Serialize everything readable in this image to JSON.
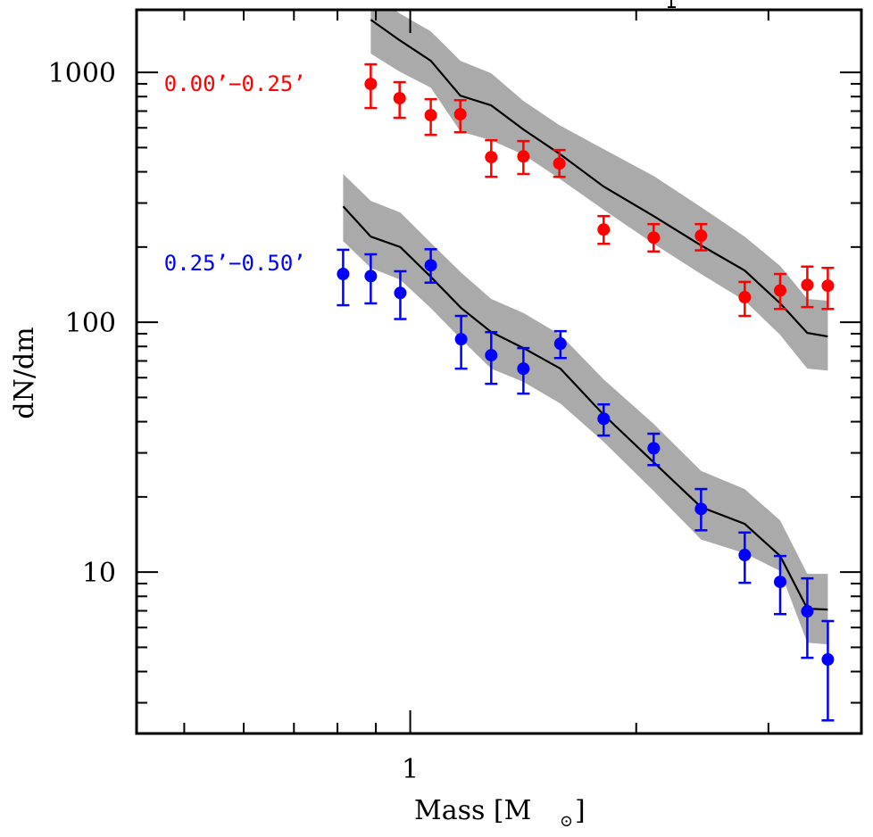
{
  "chart_data": {
    "type": "scatter",
    "title": "",
    "xlabel": "Mass [M⊙]",
    "xlabel_main": "Mass [M",
    "xlabel_sub": "⊙",
    "xlabel_close": "]",
    "ylabel": "dN/dm",
    "xscale": "log",
    "yscale": "log",
    "xlim": [
      0.432,
      3.99
    ],
    "ylim": [
      2.26,
      1780
    ],
    "grid": false,
    "x_ticks": [
      {
        "value": 0.5,
        "label": "",
        "major": false
      },
      {
        "value": 0.6,
        "label": "",
        "major": false
      },
      {
        "value": 0.7,
        "label": "",
        "major": false
      },
      {
        "value": 0.8,
        "label": "",
        "major": false
      },
      {
        "value": 0.9,
        "label": "",
        "major": false
      },
      {
        "value": 1,
        "label": "1",
        "major": true
      },
      {
        "value": 2,
        "label": "",
        "major": false
      },
      {
        "value": 3,
        "label": "",
        "major": false
      }
    ],
    "y_ticks": [
      {
        "value": 3,
        "label": "",
        "major": false
      },
      {
        "value": 4,
        "label": "",
        "major": false
      },
      {
        "value": 5,
        "label": "",
        "major": false
      },
      {
        "value": 6,
        "label": "",
        "major": false
      },
      {
        "value": 7,
        "label": "",
        "major": false
      },
      {
        "value": 8,
        "label": "",
        "major": false
      },
      {
        "value": 9,
        "label": "",
        "major": false
      },
      {
        "value": 10,
        "label": "10",
        "major": true
      },
      {
        "value": 20,
        "label": "",
        "major": false
      },
      {
        "value": 30,
        "label": "",
        "major": false
      },
      {
        "value": 40,
        "label": "",
        "major": false
      },
      {
        "value": 50,
        "label": "",
        "major": false
      },
      {
        "value": 60,
        "label": "",
        "major": false
      },
      {
        "value": 70,
        "label": "",
        "major": false
      },
      {
        "value": 80,
        "label": "",
        "major": false
      },
      {
        "value": 90,
        "label": "",
        "major": false
      },
      {
        "value": 100,
        "label": "100",
        "major": true
      },
      {
        "value": 200,
        "label": "",
        "major": false
      },
      {
        "value": 300,
        "label": "",
        "major": false
      },
      {
        "value": 400,
        "label": "",
        "major": false
      },
      {
        "value": 500,
        "label": "",
        "major": false
      },
      {
        "value": 600,
        "label": "",
        "major": false
      },
      {
        "value": 700,
        "label": "",
        "major": false
      },
      {
        "value": 800,
        "label": "",
        "major": false
      },
      {
        "value": 900,
        "label": "",
        "major": false
      },
      {
        "value": 1000,
        "label": "1000",
        "major": true
      }
    ],
    "series": [
      {
        "name": "0.00'−0.25'",
        "label": "0.00’−0.25’",
        "color": "#ff0000",
        "label_anchor": {
          "x": 0.47,
          "y": 900
        },
        "points": [
          {
            "x": 0.886,
            "y": 899,
            "err_low": 720,
            "err_high": 1077
          },
          {
            "x": 0.968,
            "y": 788,
            "err_low": 658,
            "err_high": 914
          },
          {
            "x": 1.065,
            "y": 674,
            "err_low": 562,
            "err_high": 781
          },
          {
            "x": 1.166,
            "y": 680,
            "err_low": 576,
            "err_high": 774
          },
          {
            "x": 1.282,
            "y": 458,
            "err_low": 382,
            "err_high": 535
          },
          {
            "x": 1.415,
            "y": 461,
            "err_low": 392,
            "err_high": 531
          },
          {
            "x": 1.58,
            "y": 432,
            "err_low": 382,
            "err_high": 489
          },
          {
            "x": 1.81,
            "y": 235,
            "err_low": 206,
            "err_high": 266
          },
          {
            "x": 2.11,
            "y": 218,
            "err_low": 192,
            "err_high": 247
          },
          {
            "x": 2.44,
            "y": 222,
            "err_low": 194,
            "err_high": 247
          },
          {
            "x": 2.79,
            "y": 126,
            "err_low": 106,
            "err_high": 145
          },
          {
            "x": 3.11,
            "y": 134,
            "err_low": 113,
            "err_high": 156
          },
          {
            "x": 3.38,
            "y": 141,
            "err_low": 115,
            "err_high": 167
          },
          {
            "x": 3.6,
            "y": 140,
            "err_low": 113,
            "err_high": 165
          }
        ],
        "model": [
          {
            "x": 0.886,
            "y": 1625,
            "low": 1189,
            "high": 2100
          },
          {
            "x": 0.968,
            "y": 1345,
            "low": 1008,
            "high": 1722
          },
          {
            "x": 1.065,
            "y": 1113,
            "low": 869,
            "high": 1460
          },
          {
            "x": 1.166,
            "y": 807,
            "low": 581,
            "high": 1113
          },
          {
            "x": 1.282,
            "y": 738,
            "low": 535,
            "high": 992
          },
          {
            "x": 1.415,
            "y": 591,
            "low": 469,
            "high": 769
          },
          {
            "x": 1.58,
            "y": 473,
            "low": 376,
            "high": 615
          },
          {
            "x": 1.81,
            "y": 349,
            "low": 282,
            "high": 493
          },
          {
            "x": 2.11,
            "y": 266,
            "low": 206,
            "high": 385
          },
          {
            "x": 2.44,
            "y": 203,
            "low": 156,
            "high": 289
          },
          {
            "x": 2.79,
            "y": 161,
            "low": 122,
            "high": 220
          },
          {
            "x": 3.11,
            "y": 119,
            "low": 89,
            "high": 168
          },
          {
            "x": 3.38,
            "y": 90.6,
            "low": 65.2,
            "high": 124
          },
          {
            "x": 3.6,
            "y": 87.7,
            "low": 64.1,
            "high": 122
          }
        ]
      },
      {
        "name": "0.25'−0.50'",
        "label": "0.25’−0.50’",
        "color": "#0000ff",
        "label_anchor": {
          "x": 0.47,
          "y": 172
        },
        "points": [
          {
            "x": 0.814,
            "y": 156,
            "err_low": 117,
            "err_high": 195
          },
          {
            "x": 0.886,
            "y": 153,
            "err_low": 119,
            "err_high": 187
          },
          {
            "x": 0.97,
            "y": 131,
            "err_low": 103,
            "err_high": 160
          },
          {
            "x": 1.065,
            "y": 169,
            "err_low": 144,
            "err_high": 196
          },
          {
            "x": 1.169,
            "y": 85.5,
            "err_low": 65.2,
            "err_high": 106
          },
          {
            "x": 1.282,
            "y": 73.8,
            "err_low": 56.7,
            "err_high": 91.3
          },
          {
            "x": 1.415,
            "y": 65.2,
            "err_low": 51.8,
            "err_high": 78.8
          },
          {
            "x": 1.585,
            "y": 82.1,
            "err_low": 71.9,
            "err_high": 92.1
          },
          {
            "x": 1.81,
            "y": 41.1,
            "err_low": 35.2,
            "err_high": 46.9
          },
          {
            "x": 2.11,
            "y": 31.3,
            "err_low": 26.8,
            "err_high": 35.8
          },
          {
            "x": 2.44,
            "y": 17.9,
            "err_low": 14.7,
            "err_high": 21.5
          },
          {
            "x": 2.79,
            "y": 11.7,
            "err_low": 9.06,
            "err_high": 14.4
          },
          {
            "x": 3.11,
            "y": 9.14,
            "err_low": 6.79,
            "err_high": 11.6
          },
          {
            "x": 3.38,
            "y": 6.97,
            "err_low": 4.54,
            "err_high": 9.44
          },
          {
            "x": 3.6,
            "y": 4.47,
            "err_low": 2.55,
            "err_high": 6.37
          }
        ],
        "model": [
          {
            "x": 0.814,
            "y": 291,
            "low": 211,
            "high": 392
          },
          {
            "x": 0.886,
            "y": 220,
            "low": 165,
            "high": 306
          },
          {
            "x": 0.97,
            "y": 200,
            "low": 148,
            "high": 275
          },
          {
            "x": 1.065,
            "y": 152,
            "low": 114,
            "high": 208
          },
          {
            "x": 1.169,
            "y": 114,
            "low": 85.5,
            "high": 158
          },
          {
            "x": 1.282,
            "y": 91.4,
            "low": 65.2,
            "high": 124
          },
          {
            "x": 1.415,
            "y": 78.8,
            "low": 57.7,
            "high": 109
          },
          {
            "x": 1.585,
            "y": 65.2,
            "low": 47.3,
            "high": 89.1
          },
          {
            "x": 1.81,
            "y": 42.6,
            "low": 33.2,
            "high": 59.0
          },
          {
            "x": 2.11,
            "y": 27.5,
            "low": 21.1,
            "high": 39.2
          },
          {
            "x": 2.44,
            "y": 18.2,
            "low": 13.5,
            "high": 25.4
          },
          {
            "x": 2.79,
            "y": 15.6,
            "low": 11.9,
            "high": 21.5
          },
          {
            "x": 3.11,
            "y": 11.6,
            "low": 10.1,
            "high": 16.1
          },
          {
            "x": 3.38,
            "y": 7.14,
            "low": 5.22,
            "high": 9.84
          },
          {
            "x": 3.6,
            "y": 7.08,
            "low": 5.14,
            "high": 9.84
          }
        ]
      }
    ],
    "model_line_color": "#000000",
    "band_color": "#aaaaaa",
    "legend": "inline-left"
  }
}
